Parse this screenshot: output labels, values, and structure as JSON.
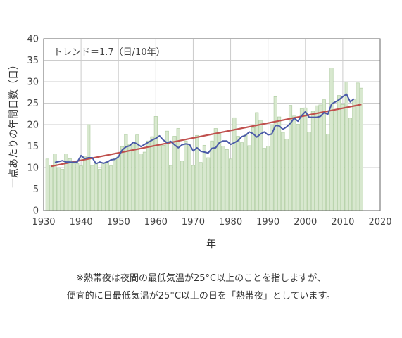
{
  "chart_data": {
    "type": "bar",
    "annotation": "トレンド＝1.7（日/10年）",
    "xlabel": "年",
    "ylabel": "一点あたりの年間日数（日）",
    "xlim": [
      1930,
      2020
    ],
    "ylim": [
      0,
      40
    ],
    "xticks": [
      1930,
      1940,
      1950,
      1960,
      1970,
      1980,
      1990,
      2000,
      2010,
      2020
    ],
    "yticks": [
      0,
      5,
      10,
      15,
      20,
      25,
      30,
      35,
      40
    ],
    "grid": true,
    "colors": {
      "bars": "#d8e8cf",
      "bar_edge": "#a9c99a",
      "moving_average": "#4a5aa8",
      "trend": "#c0504d"
    },
    "bars": {
      "x": [
        1931,
        1932,
        1933,
        1934,
        1935,
        1936,
        1937,
        1938,
        1939,
        1940,
        1941,
        1942,
        1943,
        1944,
        1945,
        1946,
        1947,
        1948,
        1949,
        1950,
        1951,
        1952,
        1953,
        1954,
        1955,
        1956,
        1957,
        1958,
        1959,
        1960,
        1961,
        1962,
        1963,
        1964,
        1965,
        1966,
        1967,
        1968,
        1969,
        1970,
        1971,
        1972,
        1973,
        1974,
        1975,
        1976,
        1977,
        1978,
        1979,
        1980,
        1981,
        1982,
        1983,
        1984,
        1985,
        1986,
        1987,
        1988,
        1989,
        1990,
        1991,
        1992,
        1993,
        1994,
        1995,
        1996,
        1997,
        1998,
        1999,
        2000,
        2001,
        2002,
        2003,
        2004,
        2005,
        2006,
        2007,
        2008,
        2009,
        2010,
        2011,
        2012,
        2013,
        2014,
        2015
      ],
      "values": [
        12.0,
        10.5,
        13.2,
        10.0,
        9.6,
        13.2,
        12.1,
        11.0,
        10.9,
        10.4,
        12.5,
        20.0,
        10.5,
        11.0,
        9.6,
        11.1,
        11.5,
        10.4,
        12.1,
        12.5,
        14.9,
        17.7,
        15.3,
        16.0,
        17.6,
        13.2,
        13.6,
        16.2,
        17.2,
        21.9,
        15.3,
        15.2,
        18.5,
        10.5,
        17.3,
        19.1,
        11.5,
        16.2,
        15.3,
        10.5,
        17.5,
        11.2,
        15.2,
        12.3,
        16.2,
        19.1,
        17.9,
        15.0,
        14.2,
        12.0,
        21.6,
        17.3,
        15.8,
        17.8,
        15.1,
        19.3,
        22.8,
        21.0,
        14.5,
        15.0,
        20.0,
        26.5,
        21.8,
        18.2,
        16.6,
        24.5,
        22.0,
        20.1,
        23.7,
        23.9,
        18.3,
        23.1,
        24.4,
        24.6,
        25.8,
        17.8,
        33.2,
        23.2,
        26.8,
        24.7,
        29.9,
        21.5,
        26.0,
        29.7,
        28.5
      ]
    },
    "moving_average": {
      "x": [
        1933,
        1934,
        1935,
        1936,
        1937,
        1938,
        1939,
        1940,
        1941,
        1942,
        1943,
        1944,
        1945,
        1946,
        1947,
        1948,
        1949,
        1950,
        1951,
        1952,
        1953,
        1954,
        1955,
        1956,
        1957,
        1958,
        1959,
        1960,
        1961,
        1962,
        1963,
        1964,
        1965,
        1966,
        1967,
        1968,
        1969,
        1970,
        1971,
        1972,
        1973,
        1974,
        1975,
        1976,
        1977,
        1978,
        1979,
        1980,
        1981,
        1982,
        1983,
        1984,
        1985,
        1986,
        1987,
        1988,
        1989,
        1990,
        1991,
        1992,
        1993,
        1994,
        1995,
        1996,
        1997,
        1998,
        1999,
        2000,
        2001,
        2002,
        2003,
        2004,
        2005,
        2006,
        2007,
        2008,
        2009,
        2010,
        2011,
        2012,
        2013
      ],
      "values": [
        11.2,
        11.4,
        11.6,
        11.3,
        11.3,
        11.2,
        11.3,
        12.8,
        12.1,
        12.3,
        12.3,
        10.9,
        11.3,
        11.0,
        11.3,
        11.8,
        11.9,
        12.5,
        14.1,
        14.8,
        15.1,
        15.9,
        15.5,
        14.9,
        15.4,
        15.9,
        16.4,
        16.8,
        17.4,
        16.4,
        15.8,
        16.1,
        15.3,
        14.6,
        15.3,
        15.5,
        15.4,
        13.9,
        14.6,
        13.8,
        13.6,
        13.4,
        14.5,
        14.6,
        15.8,
        16.2,
        16.2,
        15.4,
        15.8,
        16.3,
        17.2,
        17.5,
        18.3,
        17.9,
        17.1,
        17.8,
        18.3,
        17.6,
        17.8,
        19.8,
        19.7,
        18.9,
        19.5,
        20.3,
        21.5,
        20.8,
        22.1,
        23.0,
        21.7,
        21.7,
        21.7,
        21.9,
        22.8,
        22.4,
        24.8,
        25.3,
        25.8,
        26.5,
        27.1,
        25.3,
        26.0
      ]
    },
    "trend": {
      "x": [
        1932,
        2015
      ],
      "values": [
        10.3,
        24.7
      ]
    }
  },
  "caption": [
    "※熱帯夜は夜間の最低気温が25°C以上のことを指しますが、",
    "便宜的に日最低気温が25°C以上の日を「熱帯夜」としています。"
  ]
}
